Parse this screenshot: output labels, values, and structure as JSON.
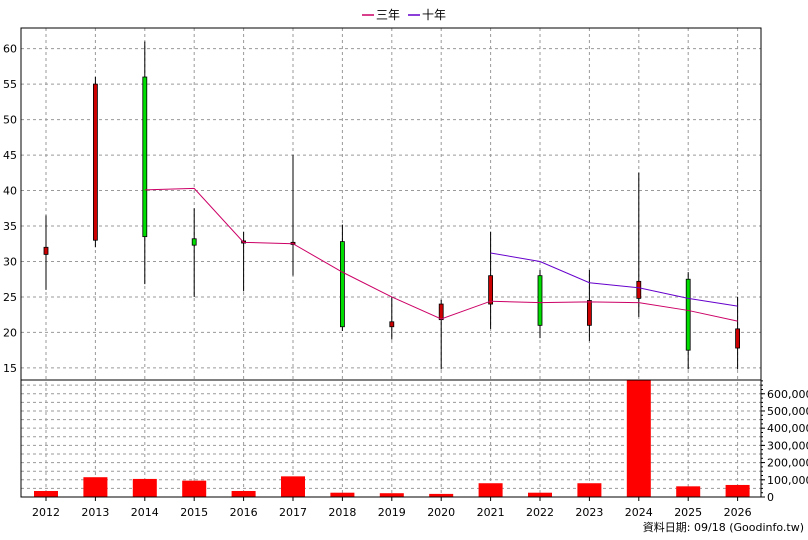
{
  "chart_data": {
    "type": "candlestick",
    "legend": {
      "position": "top-center",
      "entries": [
        {
          "name": "三年",
          "color": "#cc0066"
        },
        {
          "name": "十年",
          "color": "#6600cc"
        }
      ]
    },
    "years": [
      "2012",
      "2013",
      "2014",
      "2015",
      "2016",
      "2017",
      "2018",
      "2019",
      "2020",
      "2021",
      "2022",
      "2023",
      "2024",
      "2025",
      "2026"
    ],
    "price_axis": {
      "ylim": [
        14,
        61.5
      ],
      "ticks": [
        15,
        20,
        25,
        30,
        35,
        40,
        45,
        50,
        55,
        60
      ]
    },
    "volume_axis": {
      "ylim": [
        0,
        680000
      ],
      "ticks": [
        0,
        100000,
        200000,
        300000,
        400000,
        500000,
        600000
      ],
      "tick_labels": [
        "0",
        "100,000",
        "200,000",
        "300,000",
        "400,000",
        "500,000",
        "600,000"
      ]
    },
    "candles": [
      {
        "year": "2012",
        "open": 31.0,
        "close": 32.0,
        "high": 36.5,
        "low": 26.0
      },
      {
        "year": "2013",
        "open": 33.0,
        "close": 55.0,
        "high": 56.0,
        "low": 32.0
      },
      {
        "year": "2014",
        "open": 56.0,
        "close": 33.5,
        "high": 61.0,
        "low": 26.8
      },
      {
        "year": "2015",
        "open": 33.2,
        "close": 32.3,
        "high": 37.5,
        "low": 25.0
      },
      {
        "year": "2016",
        "open": 32.6,
        "close": 32.9,
        "high": 34.2,
        "low": 25.8
      },
      {
        "year": "2017",
        "open": 32.4,
        "close": 32.7,
        "high": 45.0,
        "low": 28.0
      },
      {
        "year": "2018",
        "open": 32.8,
        "close": 20.8,
        "high": 35.2,
        "low": 20.2
      },
      {
        "year": "2019",
        "open": 20.8,
        "close": 21.5,
        "high": 25.0,
        "low": 19.0
      },
      {
        "year": "2020",
        "open": 21.8,
        "close": 24.0,
        "high": 24.6,
        "low": 14.8
      },
      {
        "year": "2021",
        "open": 24.0,
        "close": 28.0,
        "high": 34.2,
        "low": 20.5
      },
      {
        "year": "2022",
        "open": 28.0,
        "close": 21.0,
        "high": 28.8,
        "low": 19.2
      },
      {
        "year": "2023",
        "open": 21.0,
        "close": 24.5,
        "high": 28.8,
        "low": 18.8
      },
      {
        "year": "2024",
        "open": 24.8,
        "close": 27.2,
        "high": 42.5,
        "low": 22.2
      },
      {
        "year": "2025",
        "open": 27.5,
        "close": 17.5,
        "high": 28.5,
        "low": 14.8
      },
      {
        "year": "2026",
        "open": 17.8,
        "close": 20.5,
        "high": 25.0,
        "low": 14.8
      }
    ],
    "series": [
      {
        "name": "三年",
        "color": "#cc0066",
        "points": [
          [
            "2014",
            40.1
          ],
          [
            "2015",
            40.3
          ],
          [
            "2016",
            32.7
          ],
          [
            "2017",
            32.5
          ],
          [
            "2018",
            28.5
          ],
          [
            "2019",
            25.0
          ],
          [
            "2020",
            21.9
          ],
          [
            "2021",
            24.4
          ],
          [
            "2022",
            24.2
          ],
          [
            "2023",
            24.3
          ],
          [
            "2024",
            24.2
          ],
          [
            "2025",
            23.1
          ],
          [
            "2026",
            21.6
          ]
        ]
      },
      {
        "name": "十年",
        "color": "#6600cc",
        "points": [
          [
            "2021",
            31.2
          ],
          [
            "2022",
            30.0
          ],
          [
            "2023",
            27.0
          ],
          [
            "2024",
            26.3
          ],
          [
            "2025",
            24.8
          ],
          [
            "2026",
            23.7
          ]
        ]
      }
    ],
    "volume": [
      {
        "year": "2012",
        "value": 35000
      },
      {
        "year": "2013",
        "value": 115000
      },
      {
        "year": "2014",
        "value": 105000
      },
      {
        "year": "2015",
        "value": 95000
      },
      {
        "year": "2016",
        "value": 35000
      },
      {
        "year": "2017",
        "value": 120000
      },
      {
        "year": "2018",
        "value": 25000
      },
      {
        "year": "2019",
        "value": 22000
      },
      {
        "year": "2020",
        "value": 18000
      },
      {
        "year": "2021",
        "value": 80000
      },
      {
        "year": "2022",
        "value": 25000
      },
      {
        "year": "2023",
        "value": 80000
      },
      {
        "year": "2024",
        "value": 680000
      },
      {
        "year": "2025",
        "value": 62000
      },
      {
        "year": "2026",
        "value": 70000
      }
    ],
    "colors": {
      "up": "#cc0000",
      "down": "#00dd00",
      "volume": "#ff0000",
      "wick": "#000000"
    },
    "grid": true,
    "footer": "資料日期: 09/18  (Goodinfo.tw)"
  }
}
